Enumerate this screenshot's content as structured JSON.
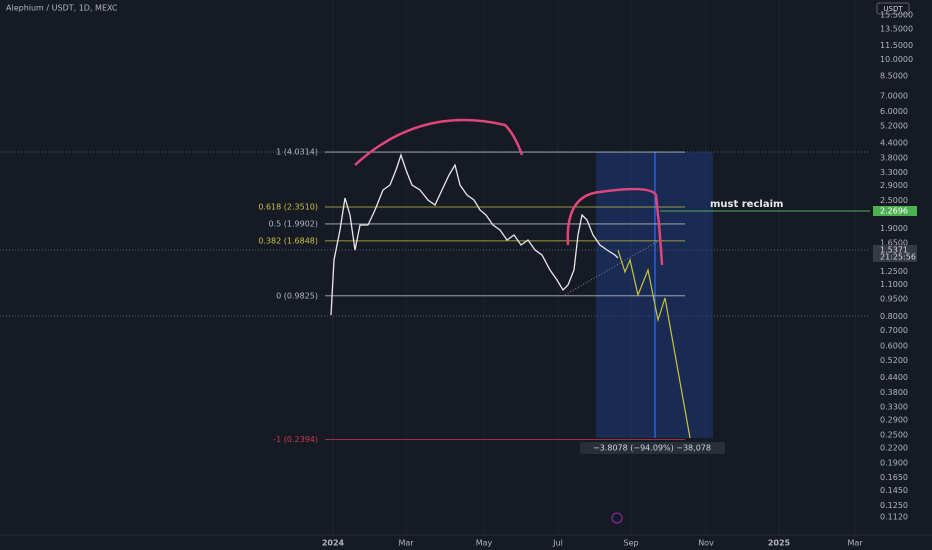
{
  "header": {
    "title": "Alephium / USDT, 1D, MEXC",
    "currency_button": "USDT"
  },
  "price_axis": [
    "15.5000",
    "13.5000",
    "11.5000",
    "10.0000",
    "8.5000",
    "7.0000",
    "6.0000",
    "5.2000",
    "4.4000",
    "3.8000",
    "3.3000",
    "2.9000",
    "2.5000",
    "1.9000",
    "1.6500",
    "1.2500",
    "1.1000",
    "0.9500",
    "0.8000",
    "0.7000",
    "0.6000",
    "0.5200",
    "0.4400",
    "0.3800",
    "0.3300",
    "0.2900",
    "0.2500",
    "0.2200",
    "0.1900",
    "0.1650",
    "0.1450",
    "0.1250",
    "0.1120"
  ],
  "badges": {
    "reclaim_price": "2.2696",
    "last_price": "1.5371",
    "countdown": "21:25:56"
  },
  "fib_levels": [
    {
      "label": "1 (4.0314)",
      "price": 4.0314,
      "color": "#b2b5be"
    },
    {
      "label": "0.618 (2.3510)",
      "price": 2.351,
      "color": "#c9c23c"
    },
    {
      "label": "0.5 (1.9902)",
      "price": 1.9902,
      "color": "#b2b5be"
    },
    {
      "label": "0.382 (1.6848)",
      "price": 1.6848,
      "color": "#c9c23c"
    },
    {
      "label": "0 (0.9825)",
      "price": 0.9825,
      "color": "#b2b5be"
    },
    {
      "label": "-1 (0.2394)",
      "price": 0.2394,
      "color": "#c93a4a"
    }
  ],
  "annotations": {
    "note": "must reclaim",
    "measure": "−3.8078 (−94.09%) −38,078"
  },
  "time_axis": [
    "2024",
    "Mar",
    "May",
    "Jul",
    "Sep",
    "Nov",
    "2025",
    "Mar"
  ]
}
